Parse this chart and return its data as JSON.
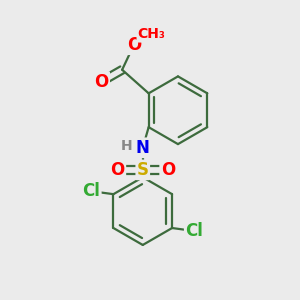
{
  "bg_color": "#ebebeb",
  "bond_color": "#3d6b3d",
  "atom_colors": {
    "O": "#ff0000",
    "N": "#0000ee",
    "S": "#ccaa00",
    "Cl": "#33aa33",
    "H": "#888888",
    "C": "#3d6b3d"
  },
  "bond_width": 1.6,
  "dbo": 0.016,
  "font_size_atom": 12,
  "font_size_small": 10,
  "font_size_methyl": 10
}
